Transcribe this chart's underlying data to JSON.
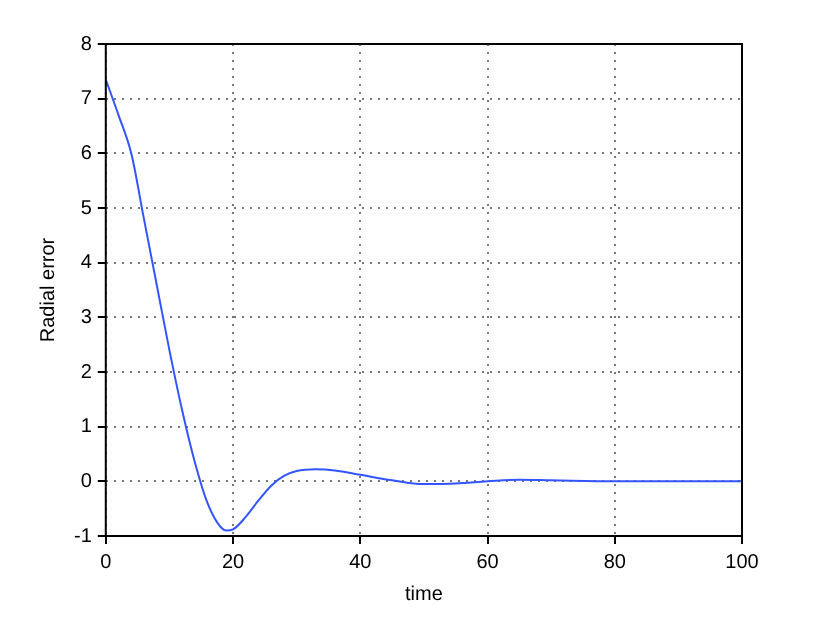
{
  "chart_data": {
    "type": "line",
    "xlabel": "time",
    "ylabel": "Radial error",
    "x": [
      0,
      2,
      4,
      6,
      8,
      10,
      12,
      14,
      16,
      18,
      19,
      20,
      22,
      24,
      26,
      28,
      30,
      33,
      36,
      40,
      45,
      50,
      55,
      60,
      65,
      70,
      80,
      90,
      100
    ],
    "series": [
      {
        "color": "#3355ff",
        "values": [
          7.35,
          6.7,
          6.0,
          4.8,
          3.6,
          2.4,
          1.3,
          0.35,
          -0.4,
          -0.83,
          -0.9,
          -0.88,
          -0.65,
          -0.35,
          -0.08,
          0.1,
          0.19,
          0.22,
          0.2,
          0.12,
          0.02,
          -0.05,
          -0.04,
          0,
          0.03,
          0.02,
          0,
          0,
          0
        ]
      }
    ],
    "xlim": [
      0,
      100
    ],
    "xticks": [
      0,
      20,
      40,
      60,
      80,
      100
    ],
    "ylim": [
      -1,
      8
    ],
    "yticks": [
      -1,
      0,
      1,
      2,
      3,
      4,
      5,
      6,
      7,
      8
    ],
    "grid": true,
    "legend": false,
    "marker": "none",
    "line_style": "solid"
  }
}
